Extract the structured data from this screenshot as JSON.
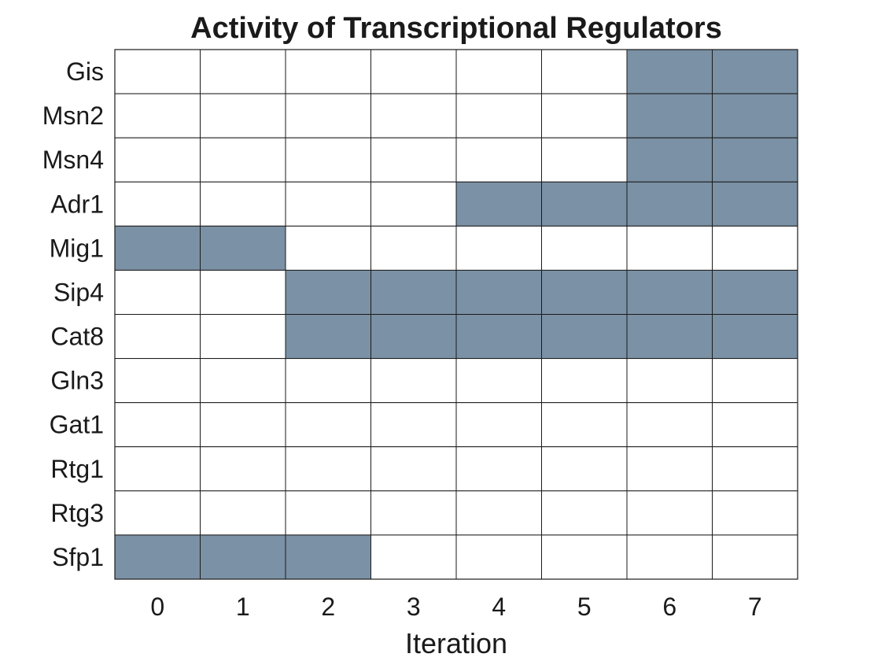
{
  "chart_data": {
    "type": "heatmap",
    "title": "Activity of Transcriptional Regulators",
    "xlabel": "Iteration",
    "ylabel": "",
    "x": [
      "0",
      "1",
      "2",
      "3",
      "4",
      "5",
      "6",
      "7"
    ],
    "y": [
      "Gis",
      "Msn2",
      "Msn4",
      "Adr1",
      "Mig1",
      "Sip4",
      "Cat8",
      "Gln3",
      "Gat1",
      "Rtg1",
      "Rtg3",
      "Sfp1"
    ],
    "values": [
      [
        0,
        0,
        0,
        0,
        0,
        0,
        1,
        1
      ],
      [
        0,
        0,
        0,
        0,
        0,
        0,
        1,
        1
      ],
      [
        0,
        0,
        0,
        0,
        0,
        0,
        1,
        1
      ],
      [
        0,
        0,
        0,
        0,
        1,
        1,
        1,
        1
      ],
      [
        1,
        1,
        0,
        0,
        0,
        0,
        0,
        0
      ],
      [
        0,
        0,
        1,
        1,
        1,
        1,
        1,
        1
      ],
      [
        0,
        0,
        1,
        1,
        1,
        1,
        1,
        1
      ],
      [
        0,
        0,
        0,
        0,
        0,
        0,
        0,
        0
      ],
      [
        0,
        0,
        0,
        0,
        0,
        0,
        0,
        0
      ],
      [
        0,
        0,
        0,
        0,
        0,
        0,
        0,
        0
      ],
      [
        0,
        0,
        0,
        0,
        0,
        0,
        0,
        0
      ],
      [
        1,
        1,
        1,
        0,
        0,
        0,
        0,
        0
      ]
    ],
    "colors": {
      "active": "#7b91a5",
      "inactive": "#ffffff",
      "grid": "#1a1a1a"
    },
    "grid": true,
    "legend": "none"
  }
}
